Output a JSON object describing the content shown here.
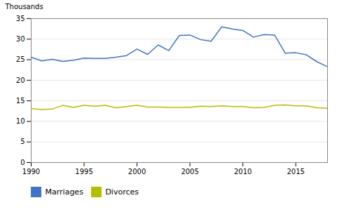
{
  "chart_data": {
    "type": "line",
    "x": [
      1990,
      1991,
      1992,
      1993,
      1994,
      1995,
      1996,
      1997,
      1998,
      1999,
      2000,
      2001,
      2002,
      2003,
      2004,
      2005,
      2006,
      2007,
      2008,
      2009,
      2010,
      2011,
      2012,
      2013,
      2014,
      2015,
      2016,
      2017,
      2018
    ],
    "series": [
      {
        "name": "Marriages",
        "color": "#4472C4",
        "values": [
          25.6,
          24.7,
          25.1,
          24.6,
          24.9,
          25.4,
          25.3,
          25.3,
          25.6,
          26.0,
          27.6,
          26.3,
          28.6,
          27.2,
          30.9,
          31.0,
          29.9,
          29.5,
          33.0,
          32.5,
          32.1,
          30.5,
          31.1,
          31.0,
          26.6,
          26.7,
          26.2,
          24.5,
          23.3
        ]
      },
      {
        "name": "Divorces",
        "color": "#B5BD00",
        "values": [
          13.1,
          12.9,
          13.0,
          13.9,
          13.4,
          13.9,
          13.7,
          13.9,
          13.3,
          13.6,
          13.9,
          13.5,
          13.5,
          13.4,
          13.4,
          13.4,
          13.7,
          13.6,
          13.8,
          13.6,
          13.6,
          13.3,
          13.4,
          13.9,
          14.0,
          13.8,
          13.8,
          13.3,
          13.2
        ]
      }
    ],
    "y_label": "Thousands",
    "xlim": [
      1990,
      2018
    ],
    "xticks": [
      1990,
      1995,
      2000,
      2005,
      2010,
      2015
    ],
    "ylim": [
      0,
      35
    ],
    "yticks": [
      0,
      5,
      10,
      15,
      20,
      25,
      30,
      35
    ],
    "grid": true,
    "legend": "bottom"
  }
}
